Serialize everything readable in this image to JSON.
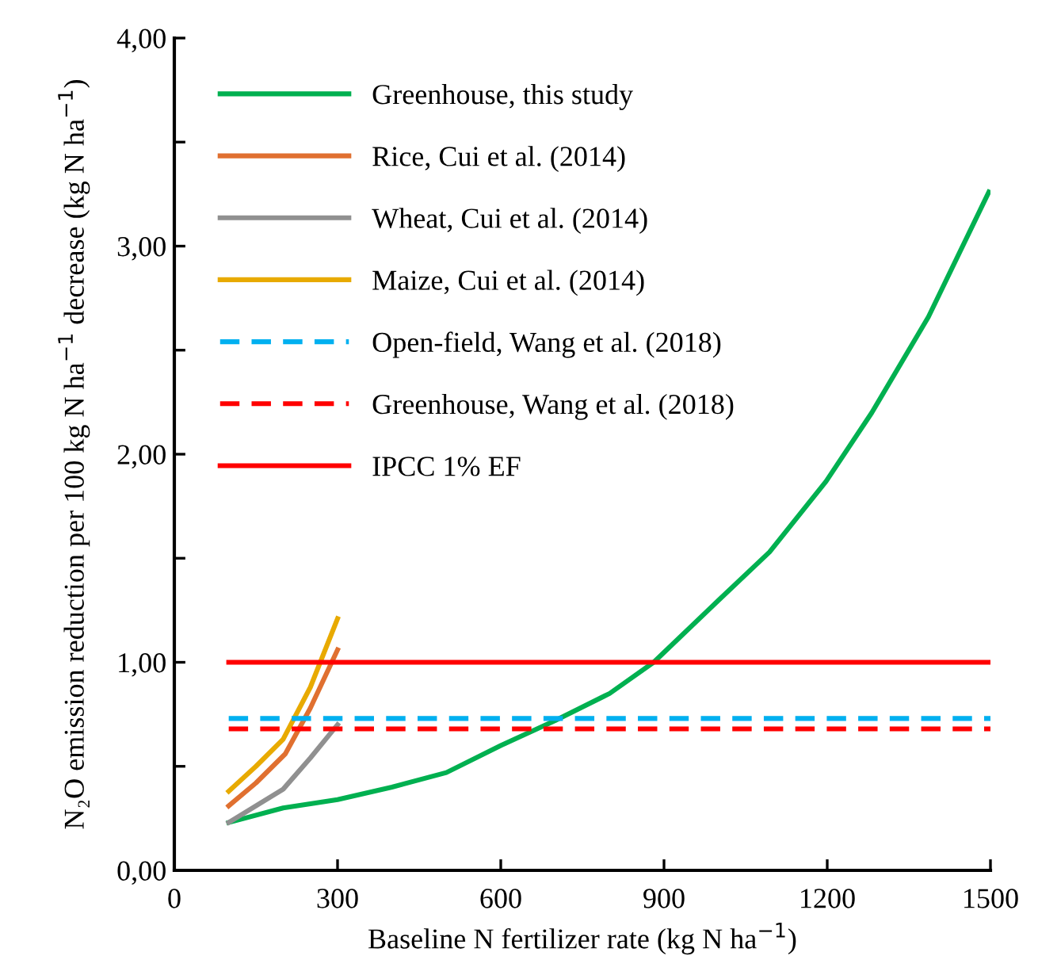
{
  "chart_data": {
    "type": "line",
    "xlabel": "Baseline N fertilizer rate (kg N ha$^{−1}$)",
    "ylabel": "N₂O emission reduction per 100 kg N ha$^{−1}$ decrease (kg N ha$^{−1}$)",
    "xlim": [
      0,
      1500
    ],
    "ylim": [
      0,
      4
    ],
    "xticks": [
      0,
      300,
      600,
      900,
      1200,
      1500
    ],
    "yticks": [
      {
        "value": 0,
        "label": "0,00"
      },
      {
        "value": 0.5,
        "label": null
      },
      {
        "value": 1,
        "label": "1,00"
      },
      {
        "value": 1.5,
        "label": null
      },
      {
        "value": 2,
        "label": "2,00"
      },
      {
        "value": 2.5,
        "label": null
      },
      {
        "value": 3,
        "label": "3,00"
      },
      {
        "value": 3.5,
        "label": null
      },
      {
        "value": 4,
        "label": "4,00"
      }
    ],
    "legend": "top left",
    "grid": false,
    "marker": "none",
    "series": [
      {
        "name": "Greenhouse, this study",
        "color": "#00b050",
        "line_style": "solid",
        "x": [
          100,
          200,
          300,
          400,
          500,
          600,
          700,
          800,
          881,
          1001,
          1094,
          1198,
          1282,
          1386,
          1497
        ],
        "values": [
          0.23,
          0.3,
          0.34,
          0.4,
          0.47,
          0.6,
          0.72,
          0.85,
          1.0,
          1.3,
          1.53,
          1.87,
          2.2,
          2.66,
          3.26
        ]
      },
      {
        "name": "Rice, Cui et al. (2014)",
        "color": "#e07030",
        "line_style": "solid",
        "x": [
          100,
          150,
          204,
          250,
          300
        ],
        "values": [
          0.31,
          0.42,
          0.56,
          0.78,
          1.06
        ]
      },
      {
        "name": "Wheat, Cui et al. (2014)",
        "color": "#909090",
        "line_style": "solid",
        "x": [
          100,
          150,
          200,
          250,
          300
        ],
        "values": [
          0.23,
          0.31,
          0.39,
          0.54,
          0.7
        ]
      },
      {
        "name": "Maize, Cui et al. (2014)",
        "color": "#e8aa00",
        "line_style": "solid",
        "x": [
          100,
          150,
          200,
          250,
          300
        ],
        "values": [
          0.38,
          0.5,
          0.63,
          0.88,
          1.21
        ]
      },
      {
        "name": "Open-field, Wang et al. (2018)",
        "color": "#00b0f0",
        "line_style": "dashed",
        "x": [
          100,
          1500
        ],
        "values": [
          0.73,
          0.73
        ]
      },
      {
        "name": "Greenhouse, Wang et al. (2018)",
        "color": "#ff0000",
        "line_style": "dashed",
        "x": [
          100,
          1500
        ],
        "values": [
          0.68,
          0.68
        ]
      },
      {
        "name": "IPCC 1% EF",
        "color": "#ff0000",
        "line_style": "solid",
        "x": [
          100,
          1500
        ],
        "values": [
          1.0,
          1.0
        ]
      }
    ]
  }
}
